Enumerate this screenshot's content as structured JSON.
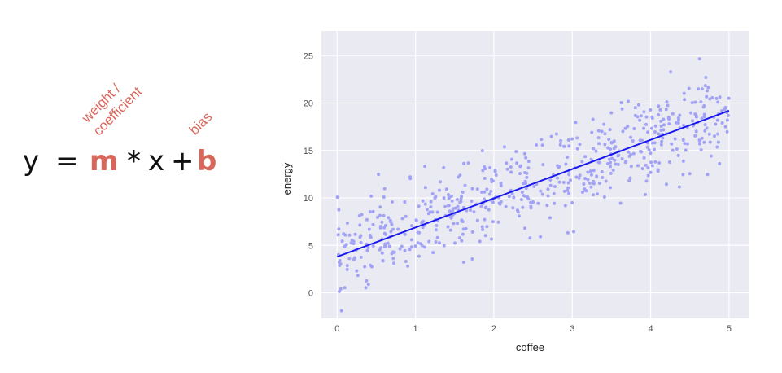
{
  "equation": {
    "y": "y",
    "equals": "=",
    "m": "m",
    "times": "*",
    "x": "x",
    "plus": "+",
    "b": "b",
    "weight_label_line1": "weight /",
    "weight_label_line2": "coefficient",
    "bias_label": "bias",
    "highlight_color": "#d9665b",
    "text_color": "#111111"
  },
  "chart_data": {
    "type": "scatter",
    "title": "",
    "xlabel": "coffee",
    "ylabel": "energy",
    "xlim": [
      -0.2,
      5.25
    ],
    "ylim": [
      -2.7,
      27.6
    ],
    "xticks": [
      0,
      1,
      2,
      3,
      4,
      5
    ],
    "yticks": [
      0,
      5,
      10,
      15,
      20,
      25
    ],
    "grid": true,
    "background": "#eaeaf2",
    "point_color": "#a3a3f5",
    "line_color": "#1a1aee",
    "n_points": 600,
    "x_range": [
      0,
      5
    ],
    "noise_sd": 2.3,
    "regression_line": {
      "x": [
        0,
        5
      ],
      "y": [
        3.8,
        19.2
      ]
    }
  }
}
